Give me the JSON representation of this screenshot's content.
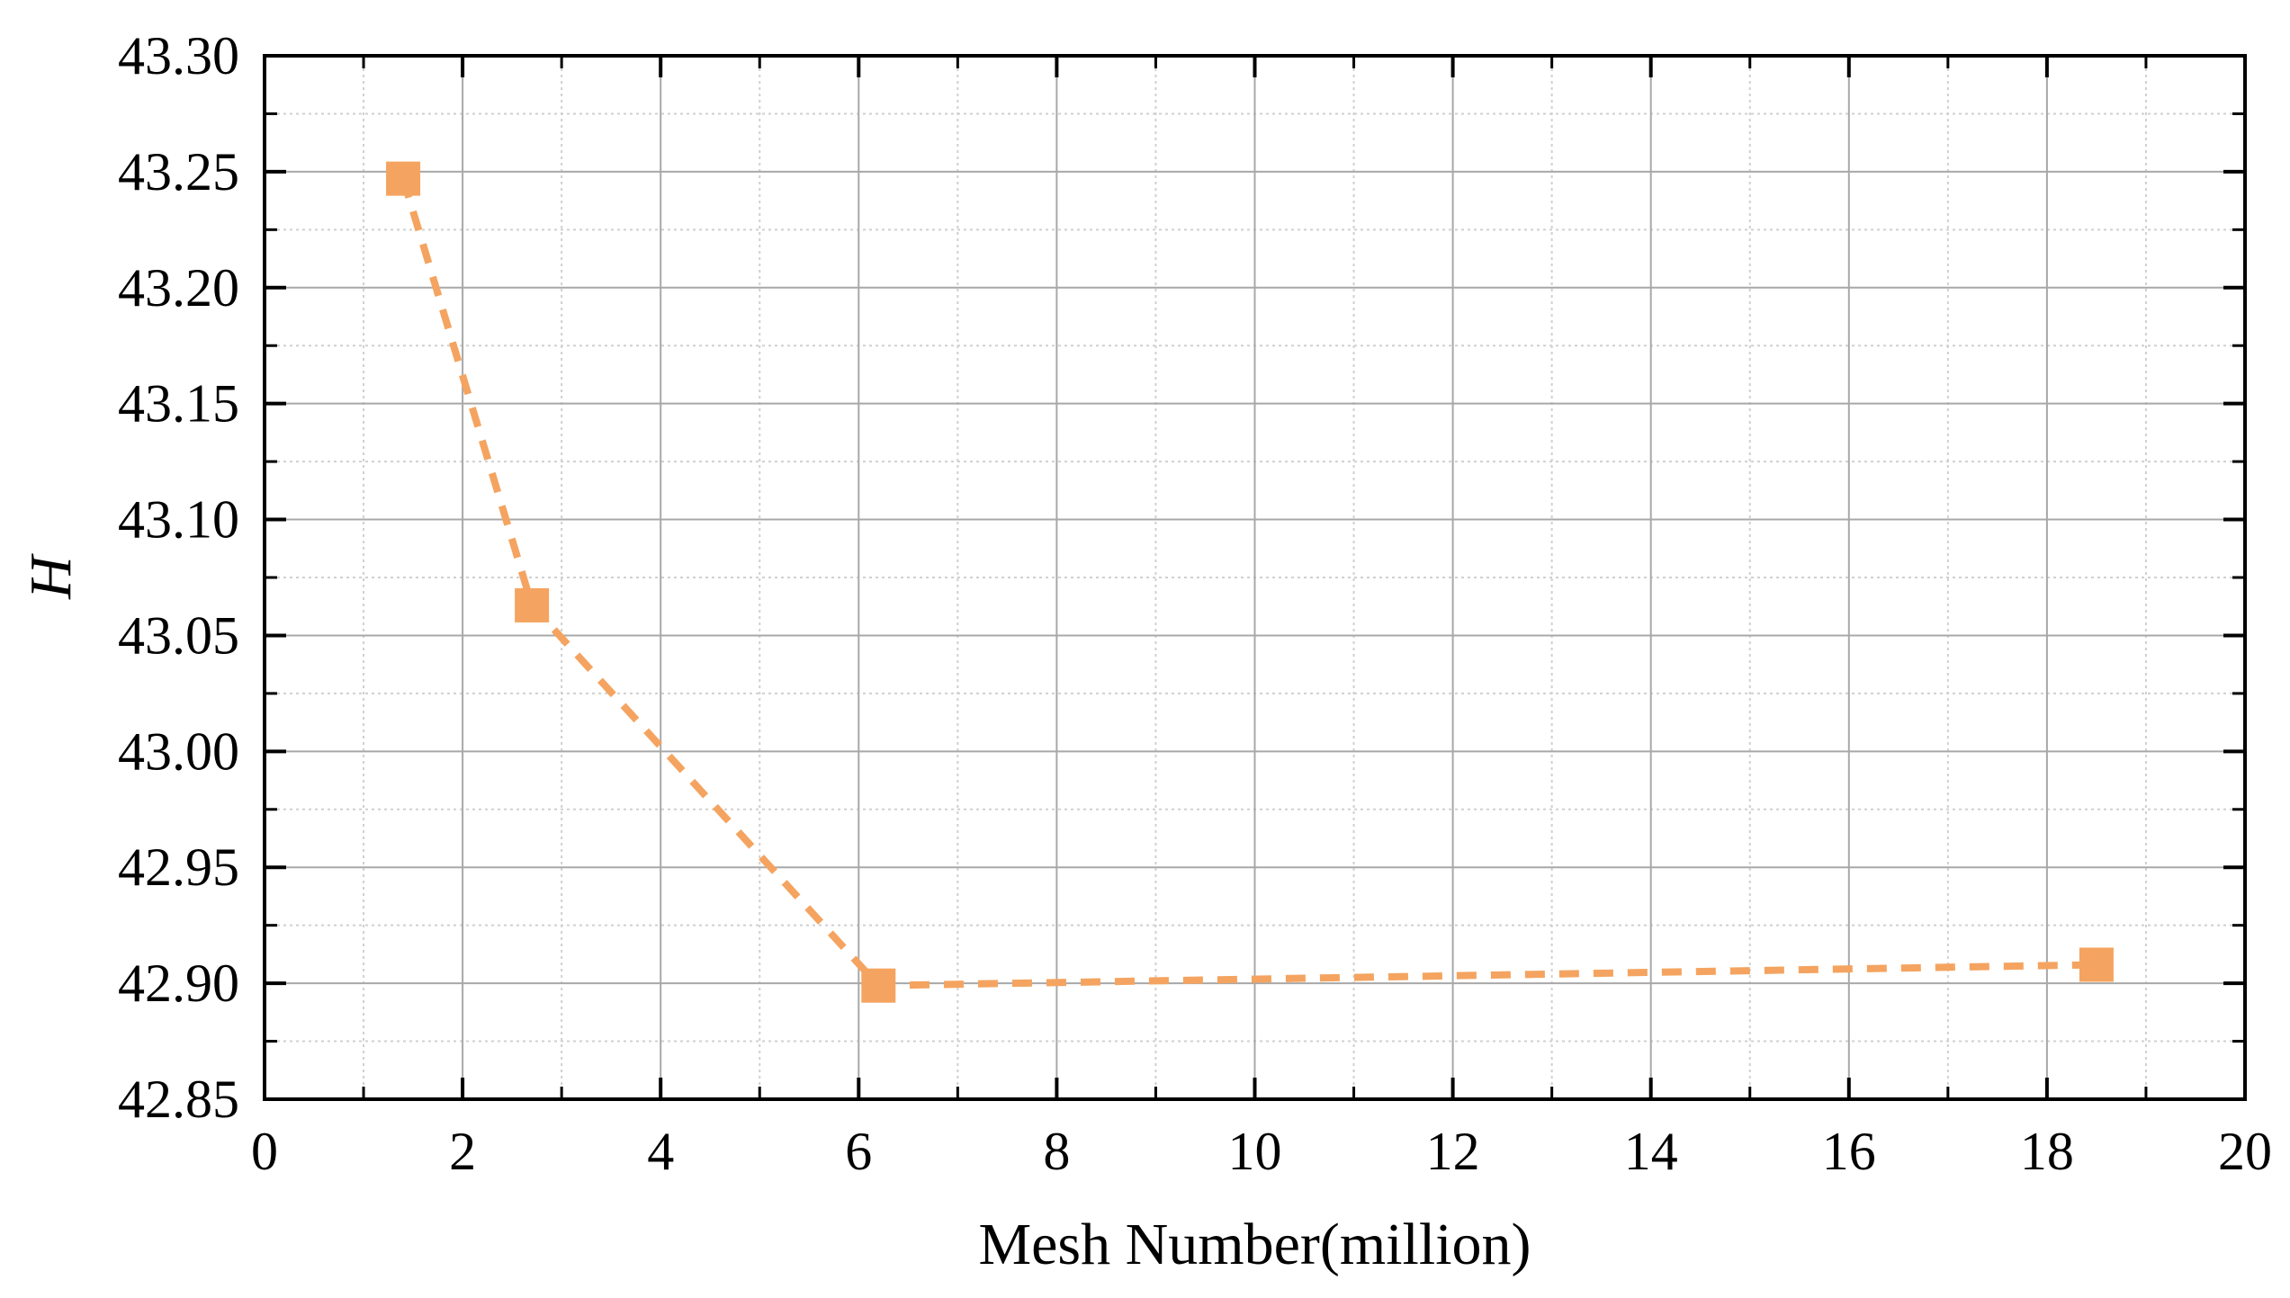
{
  "chart_data": {
    "type": "line",
    "xlabel": "Mesh Number(million)",
    "ylabel": "H",
    "xlim": [
      0,
      20
    ],
    "ylim": [
      42.85,
      43.3
    ],
    "x_ticks": [
      "0",
      "2",
      "4",
      "6",
      "8",
      "10",
      "12",
      "14",
      "16",
      "18",
      "20"
    ],
    "y_ticks": [
      "42.85",
      "42.90",
      "42.95",
      "43.00",
      "43.05",
      "43.10",
      "43.15",
      "43.20",
      "43.25",
      "43.30"
    ],
    "grid": true,
    "legend": "none",
    "series": [
      {
        "color": "#F4A460",
        "line_style": "dashed",
        "marker": "square",
        "x": [
          1.4,
          2.7,
          6.2,
          18.5
        ],
        "y": [
          43.247,
          43.063,
          42.899,
          42.908
        ]
      }
    ]
  }
}
